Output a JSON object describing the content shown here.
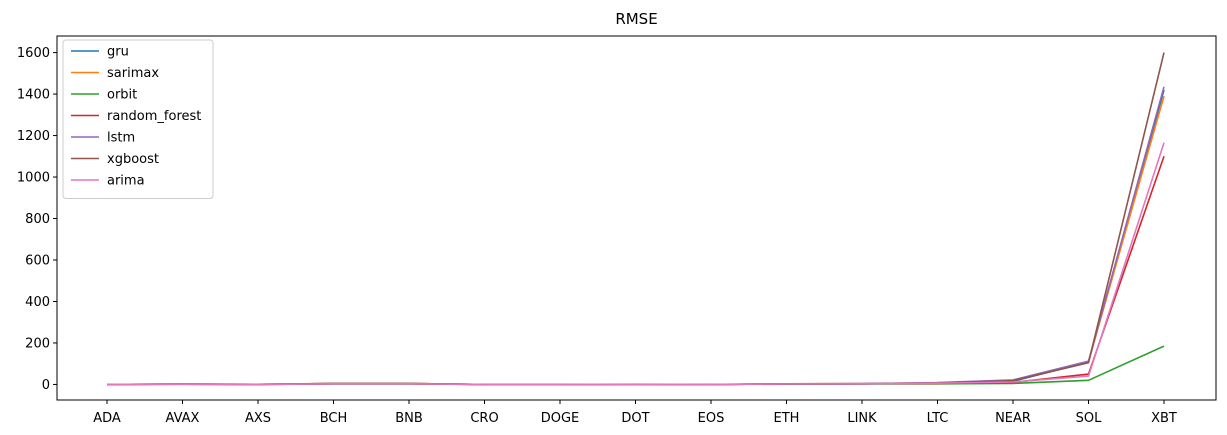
{
  "chart_data": {
    "type": "line",
    "title": "RMSE",
    "xlabel": "",
    "ylabel": "",
    "categories": [
      "ADA",
      "AVAX",
      "AXS",
      "BCH",
      "BNB",
      "CRO",
      "DOGE",
      "DOT",
      "EOS",
      "ETH",
      "LINK",
      "LTC",
      "NEAR",
      "SOL",
      "XBT"
    ],
    "yticks": [
      0,
      200,
      400,
      600,
      800,
      1000,
      1200,
      1400,
      1600
    ],
    "ylim": [
      -75,
      1680
    ],
    "grid": false,
    "legend_position": "top-left",
    "series": [
      {
        "name": "gru",
        "color": "#1f77b4",
        "values": [
          0.1,
          1.5,
          0.5,
          4,
          4,
          0.1,
          0.1,
          0.8,
          0.2,
          2,
          3,
          6,
          15,
          108,
          1420
        ]
      },
      {
        "name": "sarimax",
        "color": "#ff7f0e",
        "values": [
          0.1,
          1.8,
          0.6,
          5,
          5,
          0.1,
          0.1,
          1,
          0.3,
          3,
          4,
          8,
          20,
          110,
          1390
        ]
      },
      {
        "name": "orbit",
        "color": "#2ca02c",
        "values": [
          0.1,
          0.8,
          0.3,
          2,
          2,
          0.1,
          0.1,
          0.5,
          0.1,
          1,
          2,
          3,
          5,
          20,
          185
        ]
      },
      {
        "name": "random_forest",
        "color": "#d62728",
        "values": [
          0.1,
          1.2,
          0.4,
          3,
          3,
          0.1,
          0.1,
          0.7,
          0.2,
          2,
          3,
          5,
          10,
          50,
          1100
        ]
      },
      {
        "name": "lstm",
        "color": "#9467bd",
        "values": [
          0.1,
          1.6,
          0.5,
          4,
          4,
          0.1,
          0.1,
          0.9,
          0.3,
          3,
          4,
          9,
          22,
          112,
          1435
        ]
      },
      {
        "name": "xgboost",
        "color": "#8c564b",
        "values": [
          0.1,
          1.4,
          0.5,
          4,
          4,
          0.1,
          0.1,
          0.8,
          0.2,
          2,
          3,
          7,
          18,
          105,
          1600
        ]
      },
      {
        "name": "arima",
        "color": "#e377c2",
        "values": [
          0.1,
          1.3,
          0.4,
          3,
          3,
          0.1,
          0.1,
          0.7,
          0.2,
          2,
          3,
          6,
          12,
          40,
          1165
        ]
      }
    ]
  }
}
